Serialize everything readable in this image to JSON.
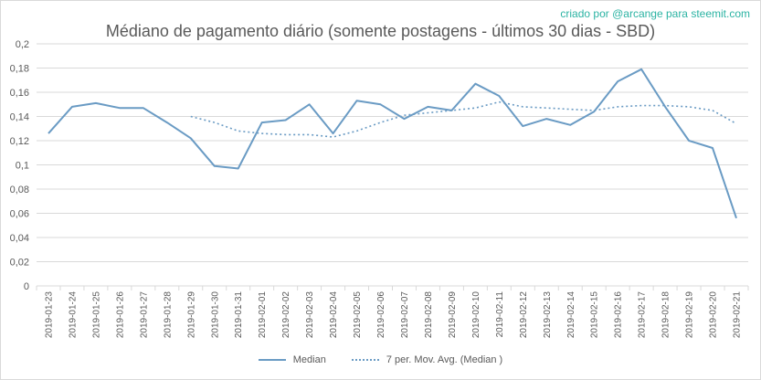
{
  "credit": "criado por @arcange para steemit.com",
  "colors": {
    "series": "#6a9bc4",
    "grid": "#d9d9d9",
    "text": "#595959",
    "credit": "#2bb3a3"
  },
  "chart_data": {
    "type": "line",
    "title": "Médiano de pagamento diário (somente postagens - últimos 30 dias - SBD)",
    "xlabel": "",
    "ylabel": "",
    "ylim": [
      0,
      0.2
    ],
    "yticks": [
      "0",
      "0,02",
      "0,04",
      "0,06",
      "0,08",
      "0,1",
      "0,12",
      "0,14",
      "0,16",
      "0,18",
      "0,2"
    ],
    "grid": true,
    "legend_position": "bottom",
    "categories": [
      "2019-01-23",
      "2019-01-24",
      "2019-01-25",
      "2019-01-26",
      "2019-01-27",
      "2019-01-28",
      "2019-01-29",
      "2019-01-30",
      "2019-01-31",
      "2019-02-01",
      "2019-02-02",
      "2019-02-03",
      "2019-02-04",
      "2019-02-05",
      "2019-02-06",
      "2019-02-07",
      "2019-02-08",
      "2019-02-09",
      "2019-02-10",
      "2019-02-11",
      "2019-02-12",
      "2019-02-13",
      "2019-02-14",
      "2019-02-15",
      "2019-02-16",
      "2019-02-17",
      "2019-02-18",
      "2019-02-19",
      "2019-02-20",
      "2019-02-21"
    ],
    "series": [
      {
        "name": "Median",
        "style": "solid",
        "values": [
          0.126,
          0.148,
          0.151,
          0.147,
          0.147,
          0.135,
          0.122,
          0.099,
          0.097,
          0.135,
          0.137,
          0.15,
          0.126,
          0.153,
          0.15,
          0.138,
          0.148,
          0.145,
          0.167,
          0.157,
          0.132,
          0.138,
          0.133,
          0.144,
          0.169,
          0.179,
          0.148,
          0.12,
          0.114,
          0.056
        ]
      },
      {
        "name": "7 per. Mov. Avg. (Median )",
        "style": "dotted",
        "values": [
          null,
          null,
          null,
          null,
          null,
          null,
          0.14,
          0.135,
          0.128,
          0.126,
          0.125,
          0.125,
          0.123,
          0.128,
          0.135,
          0.141,
          0.143,
          0.145,
          0.147,
          0.152,
          0.148,
          0.147,
          0.146,
          0.145,
          0.148,
          0.149,
          0.149,
          0.148,
          0.145,
          0.134
        ]
      }
    ]
  }
}
